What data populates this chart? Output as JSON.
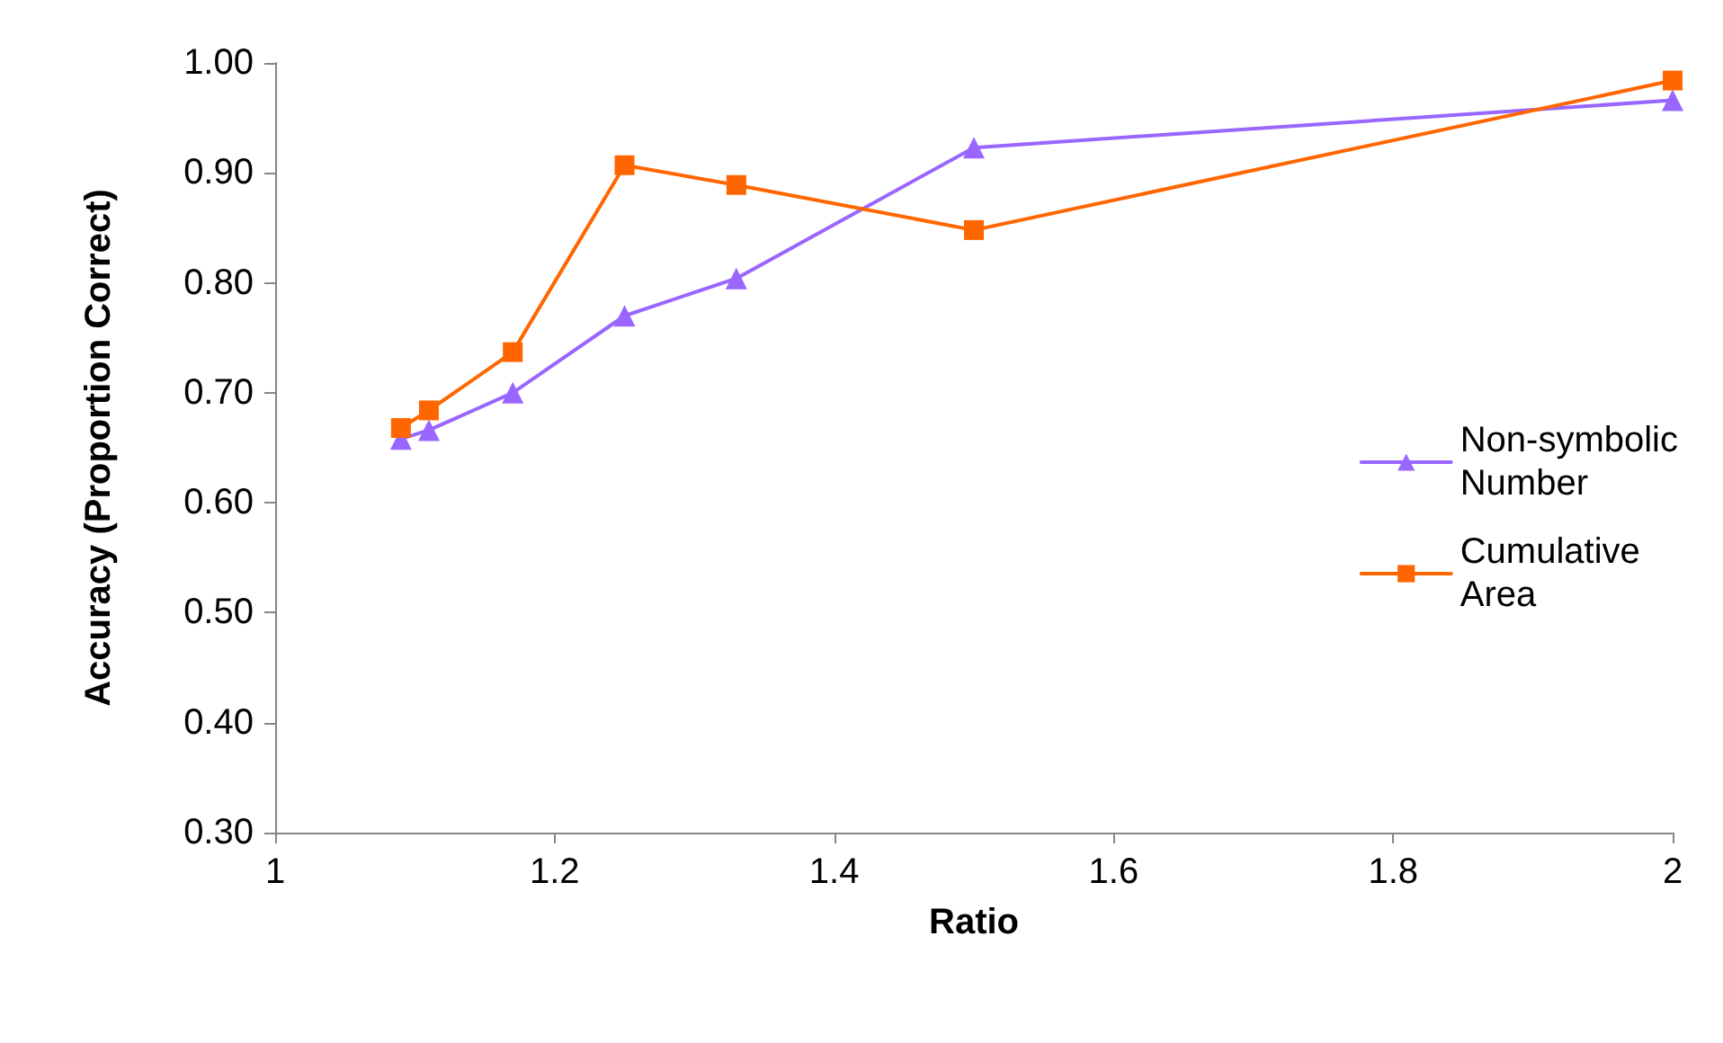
{
  "chart_data": {
    "type": "line",
    "xlabel": "Ratio",
    "ylabel": "Accuracy (Proportion Correct)",
    "xlim": [
      1,
      2
    ],
    "xticks": [
      1,
      1.2,
      1.4,
      1.6,
      1.8,
      2
    ],
    "ylim": [
      0.3,
      1.0
    ],
    "yticks": [
      {
        "value": 0.3,
        "label": "0.30"
      },
      {
        "value": 0.4,
        "label": "0.40"
      },
      {
        "value": 0.5,
        "label": "0.50"
      },
      {
        "value": 0.6,
        "label": "0.60"
      },
      {
        "value": 0.7,
        "label": "0.70"
      },
      {
        "value": 0.8,
        "label": "0.80"
      },
      {
        "value": 0.9,
        "label": "0.90"
      },
      {
        "value": 1.0,
        "label": "1.00"
      }
    ],
    "x": [
      1.09,
      1.11,
      1.17,
      1.25,
      1.33,
      1.5,
      2
    ],
    "series": [
      {
        "name": "Non-symbolic Number",
        "color": "#9966ff",
        "marker": "triangle",
        "values": [
          0.658,
          0.666,
          0.7,
          0.77,
          0.804,
          0.923,
          0.966
        ]
      },
      {
        "name": "Cumulative Area",
        "color": "#ff6600",
        "marker": "square",
        "values": [
          0.668,
          0.684,
          0.737,
          0.907,
          0.889,
          0.848,
          0.984
        ]
      }
    ],
    "grid": false,
    "legend": "right",
    "line_style": "solid"
  }
}
